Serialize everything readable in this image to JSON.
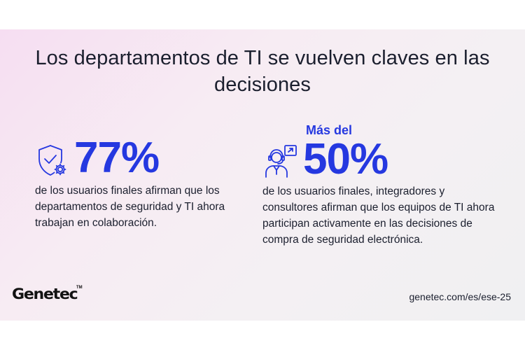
{
  "title": "Los departamentos de TI se vuelven claves en las decisiones",
  "stats": [
    {
      "icon": "shield-gear-icon",
      "prefix": "",
      "value": "77%",
      "description": "de los usuarios finales afirman que los departamentos de seguridad y TI ahora trabajan en colaboración."
    },
    {
      "icon": "person-headset-icon",
      "prefix": "Más del",
      "value": "50%",
      "description": "de los usuarios finales, integradores y consultores afirman que los equipos de TI ahora participan activamente en las decisiones de compra de seguridad electrónica."
    }
  ],
  "footer": {
    "logo": "Genetec",
    "trademark": "TM",
    "url": "genetec.com/es/ese-25"
  },
  "colors": {
    "accent": "#2538e0",
    "text": "#1b1f2e",
    "background_gradient": [
      "#f6def2",
      "#f0f0f2"
    ]
  }
}
